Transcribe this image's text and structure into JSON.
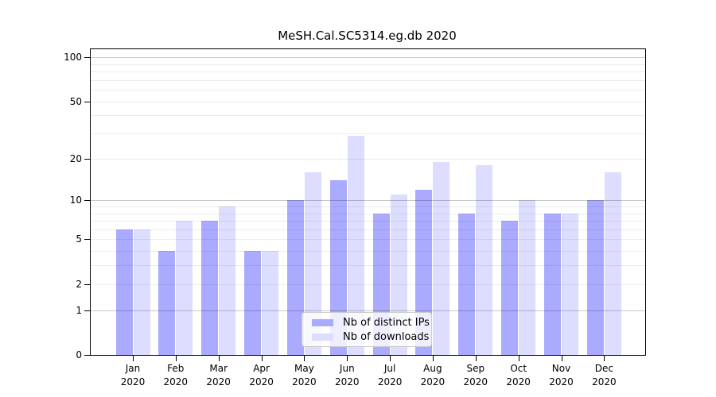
{
  "chart_data": {
    "type": "bar",
    "title": "MeSH.Cal.SC5314.eg.db 2020",
    "categories": [
      "Jan",
      "Feb",
      "Mar",
      "Apr",
      "May",
      "Jun",
      "Jul",
      "Aug",
      "Sep",
      "Oct",
      "Nov",
      "Dec"
    ],
    "xtick_sublabel": "2020",
    "series": [
      {
        "name": "Nb of distinct IPs",
        "color": "#aaaaff",
        "values": [
          6,
          4,
          7,
          4,
          10,
          14,
          8,
          12,
          8,
          7,
          8,
          10
        ]
      },
      {
        "name": "Nb of downloads",
        "color": "#ddddff",
        "values": [
          6,
          7,
          9,
          4,
          16,
          29,
          11,
          19,
          18,
          10,
          8,
          16
        ]
      }
    ],
    "yscale": "log10(1+value)",
    "ytick_values": [
      0,
      1,
      2,
      5,
      10,
      20,
      50,
      100
    ],
    "ylim": [
      0,
      113
    ],
    "grid": "on",
    "grid_major_values": [
      1,
      10,
      100
    ],
    "grid_minor_values": [
      2,
      3,
      4,
      5,
      6,
      7,
      8,
      9,
      20,
      30,
      40,
      50,
      60,
      70,
      80,
      90
    ],
    "legend": {
      "entries": [
        "Nb of distinct IPs",
        "Nb of downloads"
      ],
      "position": "lower-center-inside"
    }
  }
}
